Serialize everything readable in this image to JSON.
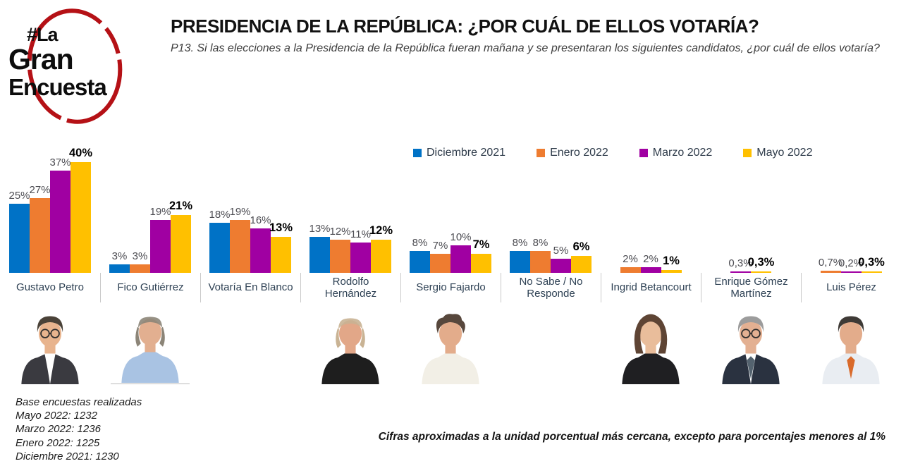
{
  "logo": {
    "line1": "#La",
    "line2": "Gran",
    "line3": "Encuesta",
    "circle_color": "#B51116"
  },
  "header": {
    "title": "PRESIDENCIA DE LA REPÚBLICA: ¿POR CUÁL DE ELLOS VOTARÍA?",
    "subtitle": "P13. Si las elecciones a la Presidencia de la República fueran mañana y se presentaran los siguientes candidatos, ¿por cuál de ellos votaría?"
  },
  "chart_data": {
    "type": "bar",
    "title": "Presidencia de la República: ¿por cuál de ellos votaría?",
    "grid": false,
    "legend_position": "top",
    "unit": "%",
    "ylim": [
      0,
      42
    ],
    "series": [
      {
        "name": "Diciembre 2021",
        "color": "#0072C6"
      },
      {
        "name": "Enero 2022",
        "color": "#EE7C30"
      },
      {
        "name": "Marzo 2022",
        "color": "#A000A2"
      },
      {
        "name": "Mayo 2022",
        "color": "#FFC000"
      }
    ],
    "categories": [
      "Gustavo Petro",
      "Fico Gutiérrez",
      "Votaría En Blanco",
      "Rodolfo Hernández",
      "Sergio Fajardo",
      "No Sabe / No Responde",
      "Ingrid Betancourt",
      "Enrique Gómez Martínez",
      "Luis Pérez"
    ],
    "values": [
      [
        25,
        27,
        37,
        40
      ],
      [
        3,
        3,
        19,
        21
      ],
      [
        18,
        19,
        16,
        13
      ],
      [
        13,
        12,
        11,
        12
      ],
      [
        8,
        7,
        10,
        7
      ],
      [
        8,
        8,
        5,
        6
      ],
      [
        null,
        2,
        2,
        1
      ],
      [
        null,
        null,
        0.3,
        0.3
      ],
      [
        null,
        0.7,
        0.2,
        0.3
      ]
    ],
    "labels": [
      [
        "25%",
        "27%",
        "37%",
        "40%"
      ],
      [
        "3%",
        "3%",
        "19%",
        "21%"
      ],
      [
        "18%",
        "19%",
        "16%",
        "13%"
      ],
      [
        "13%",
        "12%",
        "11%",
        "12%"
      ],
      [
        "8%",
        "7%",
        "10%",
        "7%"
      ],
      [
        "8%",
        "8%",
        "5%",
        "6%"
      ],
      [
        null,
        "2%",
        "2%",
        "1%"
      ],
      [
        null,
        null,
        "0,3%",
        "0,3%"
      ],
      [
        null,
        "0,7%",
        "0,2%",
        "0,3%"
      ]
    ]
  },
  "candidates": [
    {
      "photo": {
        "style": "short",
        "skin": "#E8B48E",
        "hair": "#4A4238",
        "shirt": "#FFFFFF",
        "jacket": "#3A3A40",
        "glasses": true
      }
    },
    {
      "photo": {
        "style": "balding",
        "skin": "#E2AF90",
        "hair": "#8C8578",
        "shirt": "#A9C3E3"
      },
      "underline": true
    },
    {
      "photo": null
    },
    {
      "photo": {
        "style": "balding",
        "skin": "#E2A788",
        "hair": "#C9B394",
        "shirt": "#1E1E1E"
      }
    },
    {
      "photo": {
        "style": "curly",
        "skin": "#E3AC8B",
        "hair": "#57473C",
        "shirt": "#F2EFE6"
      }
    },
    {
      "photo": null
    },
    {
      "photo": {
        "style": "bob",
        "skin": "#E9BD9B",
        "hair": "#5E4434",
        "shirt": "#1F1F22"
      }
    },
    {
      "photo": {
        "style": "short",
        "skin": "#E3B092",
        "hair": "#9C9C9C",
        "shirt": "#FFFFFF",
        "jacket": "#2A3240",
        "tie": "#54636F",
        "glasses": true
      }
    },
    {
      "photo": {
        "style": "short",
        "skin": "#E3AC8B",
        "hair": "#3E3A36",
        "shirt": "#E9EDF2",
        "tie": "#D96A2B"
      }
    }
  ],
  "footer": {
    "base_lines": [
      "Base encuestas realizadas",
      "Mayo 2022: 1232",
      "Marzo 2022: 1236",
      "Enero 2022: 1225",
      "Diciembre 2021: 1230"
    ],
    "note": "Cifras aproximadas a la unidad porcentual más cercana, excepto para porcentajes menores al 1%"
  }
}
